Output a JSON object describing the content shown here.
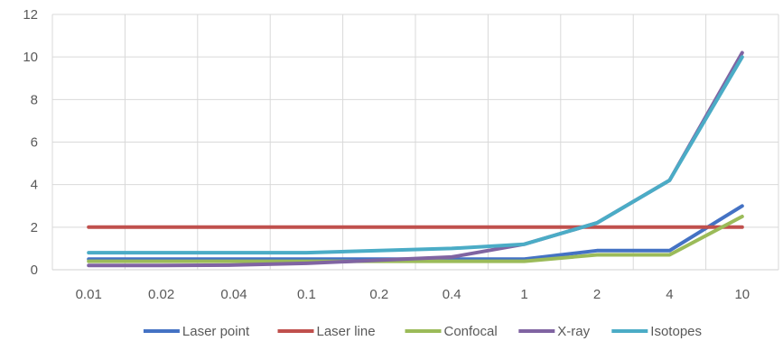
{
  "chart_data": {
    "type": "line",
    "title": "",
    "xlabel": "",
    "ylabel": "",
    "categories": [
      "0.01",
      "0.02",
      "0.04",
      "0.1",
      "0.2",
      "0.4",
      "1",
      "2",
      "4",
      "10"
    ],
    "ylim": [
      0,
      12
    ],
    "yticks": [
      "0",
      "2",
      "4",
      "6",
      "8",
      "10",
      "12"
    ],
    "grid": true,
    "legend_position": "bottom",
    "series": [
      {
        "name": "Laser point",
        "color": "#4472c4",
        "values": [
          0.5,
          0.5,
          0.5,
          0.5,
          0.5,
          0.5,
          0.5,
          0.9,
          0.9,
          3.0
        ]
      },
      {
        "name": "Laser line",
        "color": "#c0504d",
        "values": [
          2,
          2,
          2,
          2,
          2,
          2,
          2,
          2,
          2,
          2
        ]
      },
      {
        "name": "Confocal",
        "color": "#9bbb59",
        "values": [
          0.4,
          0.4,
          0.4,
          0.4,
          0.4,
          0.4,
          0.4,
          0.7,
          0.7,
          2.5
        ]
      },
      {
        "name": "X-ray",
        "color": "#8064a2",
        "values": [
          0.2,
          0.2,
          0.22,
          0.3,
          0.45,
          0.6,
          1.2,
          2.2,
          4.2,
          10.2
        ]
      },
      {
        "name": "Isotopes",
        "color": "#4bacc6",
        "values": [
          0.8,
          0.8,
          0.8,
          0.8,
          0.9,
          1.0,
          1.2,
          2.2,
          4.2,
          10.0
        ]
      }
    ]
  }
}
